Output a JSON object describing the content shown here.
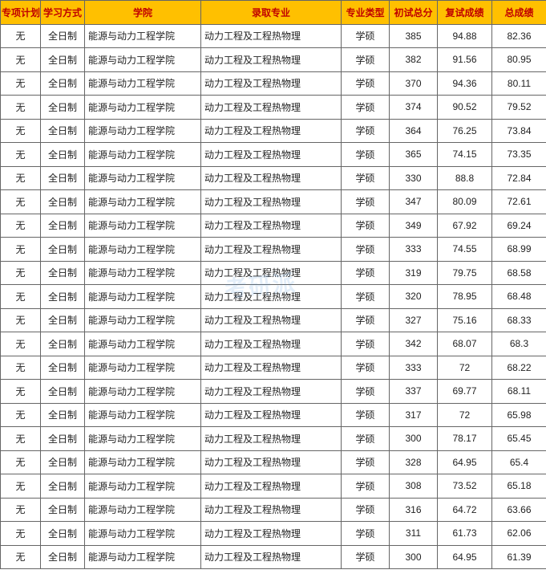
{
  "table": {
    "header_bg": "#ffc000",
    "header_color": "#c00000",
    "border_color": "#666666",
    "columns": [
      {
        "key": "plan",
        "label": "专项计划"
      },
      {
        "key": "mode",
        "label": "学习方式"
      },
      {
        "key": "school",
        "label": "学院"
      },
      {
        "key": "major",
        "label": "录取专业"
      },
      {
        "key": "type",
        "label": "专业类型"
      },
      {
        "key": "s1",
        "label": "初试总分"
      },
      {
        "key": "s2",
        "label": "复试成绩"
      },
      {
        "key": "s3",
        "label": "总成绩"
      }
    ],
    "rows": [
      {
        "plan": "无",
        "mode": "全日制",
        "school": "能源与动力工程学院",
        "major": "动力工程及工程热物理",
        "type": "学硕",
        "s1": "385",
        "s2": "94.88",
        "s3": "82.36"
      },
      {
        "plan": "无",
        "mode": "全日制",
        "school": "能源与动力工程学院",
        "major": "动力工程及工程热物理",
        "type": "学硕",
        "s1": "382",
        "s2": "91.56",
        "s3": "80.95"
      },
      {
        "plan": "无",
        "mode": "全日制",
        "school": "能源与动力工程学院",
        "major": "动力工程及工程热物理",
        "type": "学硕",
        "s1": "370",
        "s2": "94.36",
        "s3": "80.11"
      },
      {
        "plan": "无",
        "mode": "全日制",
        "school": "能源与动力工程学院",
        "major": "动力工程及工程热物理",
        "type": "学硕",
        "s1": "374",
        "s2": "90.52",
        "s3": "79.52"
      },
      {
        "plan": "无",
        "mode": "全日制",
        "school": "能源与动力工程学院",
        "major": "动力工程及工程热物理",
        "type": "学硕",
        "s1": "364",
        "s2": "76.25",
        "s3": "73.84"
      },
      {
        "plan": "无",
        "mode": "全日制",
        "school": "能源与动力工程学院",
        "major": "动力工程及工程热物理",
        "type": "学硕",
        "s1": "365",
        "s2": "74.15",
        "s3": "73.35"
      },
      {
        "plan": "无",
        "mode": "全日制",
        "school": "能源与动力工程学院",
        "major": "动力工程及工程热物理",
        "type": "学硕",
        "s1": "330",
        "s2": "88.8",
        "s3": "72.84"
      },
      {
        "plan": "无",
        "mode": "全日制",
        "school": "能源与动力工程学院",
        "major": "动力工程及工程热物理",
        "type": "学硕",
        "s1": "347",
        "s2": "80.09",
        "s3": "72.61"
      },
      {
        "plan": "无",
        "mode": "全日制",
        "school": "能源与动力工程学院",
        "major": "动力工程及工程热物理",
        "type": "学硕",
        "s1": "349",
        "s2": "67.92",
        "s3": "69.24"
      },
      {
        "plan": "无",
        "mode": "全日制",
        "school": "能源与动力工程学院",
        "major": "动力工程及工程热物理",
        "type": "学硕",
        "s1": "333",
        "s2": "74.55",
        "s3": "68.99"
      },
      {
        "plan": "无",
        "mode": "全日制",
        "school": "能源与动力工程学院",
        "major": "动力工程及工程热物理",
        "type": "学硕",
        "s1": "319",
        "s2": "79.75",
        "s3": "68.58"
      },
      {
        "plan": "无",
        "mode": "全日制",
        "school": "能源与动力工程学院",
        "major": "动力工程及工程热物理",
        "type": "学硕",
        "s1": "320",
        "s2": "78.95",
        "s3": "68.48"
      },
      {
        "plan": "无",
        "mode": "全日制",
        "school": "能源与动力工程学院",
        "major": "动力工程及工程热物理",
        "type": "学硕",
        "s1": "327",
        "s2": "75.16",
        "s3": "68.33"
      },
      {
        "plan": "无",
        "mode": "全日制",
        "school": "能源与动力工程学院",
        "major": "动力工程及工程热物理",
        "type": "学硕",
        "s1": "342",
        "s2": "68.07",
        "s3": "68.3"
      },
      {
        "plan": "无",
        "mode": "全日制",
        "school": "能源与动力工程学院",
        "major": "动力工程及工程热物理",
        "type": "学硕",
        "s1": "333",
        "s2": "72",
        "s3": "68.22"
      },
      {
        "plan": "无",
        "mode": "全日制",
        "school": "能源与动力工程学院",
        "major": "动力工程及工程热物理",
        "type": "学硕",
        "s1": "337",
        "s2": "69.77",
        "s3": "68.11"
      },
      {
        "plan": "无",
        "mode": "全日制",
        "school": "能源与动力工程学院",
        "major": "动力工程及工程热物理",
        "type": "学硕",
        "s1": "317",
        "s2": "72",
        "s3": "65.98"
      },
      {
        "plan": "无",
        "mode": "全日制",
        "school": "能源与动力工程学院",
        "major": "动力工程及工程热物理",
        "type": "学硕",
        "s1": "300",
        "s2": "78.17",
        "s3": "65.45"
      },
      {
        "plan": "无",
        "mode": "全日制",
        "school": "能源与动力工程学院",
        "major": "动力工程及工程热物理",
        "type": "学硕",
        "s1": "328",
        "s2": "64.95",
        "s3": "65.4"
      },
      {
        "plan": "无",
        "mode": "全日制",
        "school": "能源与动力工程学院",
        "major": "动力工程及工程热物理",
        "type": "学硕",
        "s1": "308",
        "s2": "73.52",
        "s3": "65.18"
      },
      {
        "plan": "无",
        "mode": "全日制",
        "school": "能源与动力工程学院",
        "major": "动力工程及工程热物理",
        "type": "学硕",
        "s1": "316",
        "s2": "64.72",
        "s3": "63.66"
      },
      {
        "plan": "无",
        "mode": "全日制",
        "school": "能源与动力工程学院",
        "major": "动力工程及工程热物理",
        "type": "学硕",
        "s1": "311",
        "s2": "61.73",
        "s3": "62.06"
      },
      {
        "plan": "无",
        "mode": "全日制",
        "school": "能源与动力工程学院",
        "major": "动力工程及工程热物理",
        "type": "学硕",
        "s1": "300",
        "s2": "64.95",
        "s3": "61.39"
      }
    ]
  },
  "watermark": "考研派"
}
